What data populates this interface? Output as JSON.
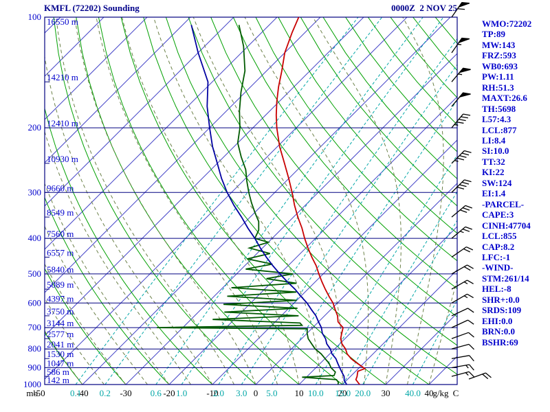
{
  "header": {
    "title": "KMFL (72202) Sounding",
    "datetime": "0000Z  2 NOV 25"
  },
  "indices": [
    "WMO:72202",
    "TP:89",
    "MW:143",
    "FRZ:593",
    "WB0:693",
    "PW:1.11",
    "RH:51.3",
    "MAXT:26.6",
    "TH:5698",
    "L57:4.3",
    "LCL:877",
    "LI:8.4",
    "SI:10.0",
    "TT:32",
    "KI:22",
    "SW:124",
    "EI:1.4",
    "-PARCEL-",
    "CAPE:3",
    "CINH:47704",
    "LCL:855",
    "CAP:8.2",
    "LFC:-1",
    "-WIND-",
    "STM:261/14",
    "HEL:-8",
    "SHR+:0.0",
    "SRDS:109",
    "EHI:0.0",
    "BRN:0.0",
    "BSHR:69"
  ],
  "chart_data": {
    "type": "line",
    "variant": "skew-t-log-p",
    "title": "KMFL (72202) Sounding",
    "x_axis": {
      "label": "C",
      "unit": "C",
      "ticks": [
        -50,
        -40,
        -30,
        -20,
        -10,
        0,
        10,
        20,
        30,
        40
      ]
    },
    "y_axis": {
      "label": "mb",
      "unit": "mb",
      "scale": "log",
      "ticks": [
        100,
        200,
        300,
        400,
        500,
        600,
        700,
        800,
        900,
        1000
      ]
    },
    "mixing_ratio_unit": "g/kg",
    "mixing_ratio_lines": [
      "0.1",
      "0.2",
      "0.6",
      "1.0",
      "2.0",
      "3.0",
      "5.0",
      "10.0",
      "15.0",
      "20.0",
      "40.0"
    ],
    "dry_adiabats_c": {
      "from": -40,
      "to": 270,
      "step": 10
    },
    "moist_adiabats_c": {
      "from": -40,
      "to": 40,
      "step": 5
    },
    "heights": [
      {
        "p": 100,
        "m": 16550
      },
      {
        "p": 150,
        "m": 14210
      },
      {
        "p": 200,
        "m": 12410
      },
      {
        "p": 250,
        "m": 10930
      },
      {
        "p": 300,
        "m": 9660
      },
      {
        "p": 350,
        "m": 8549
      },
      {
        "p": 400,
        "m": 7560
      },
      {
        "p": 450,
        "m": 6557
      },
      {
        "p": 500,
        "m": 5840
      },
      {
        "p": 550,
        "m": 5089
      },
      {
        "p": 600,
        "m": 4397
      },
      {
        "p": 650,
        "m": 3750
      },
      {
        "p": 700,
        "m": 3144
      },
      {
        "p": 750,
        "m": 2577
      },
      {
        "p": 800,
        "m": 2041
      },
      {
        "p": 850,
        "m": 1530
      },
      {
        "p": 900,
        "m": 1047
      },
      {
        "p": 950,
        "m": 586
      },
      {
        "p": 1000,
        "m": 142
      }
    ],
    "series": [
      {
        "name": "temperature",
        "color": "#c80000",
        "points": [
          [
            1000,
            24
          ],
          [
            985,
            23
          ],
          [
            970,
            22
          ],
          [
            950,
            21.5
          ],
          [
            935,
            21
          ],
          [
            920,
            20.5
          ],
          [
            905,
            21.5
          ],
          [
            890,
            20
          ],
          [
            875,
            18.5
          ],
          [
            860,
            17
          ],
          [
            850,
            16
          ],
          [
            825,
            14
          ],
          [
            800,
            12.5
          ],
          [
            775,
            10.5
          ],
          [
            750,
            9
          ],
          [
            725,
            8
          ],
          [
            700,
            7
          ],
          [
            690,
            6
          ],
          [
            675,
            4.5
          ],
          [
            650,
            3
          ],
          [
            625,
            1
          ],
          [
            600,
            -1
          ],
          [
            575,
            -3.5
          ],
          [
            550,
            -6
          ],
          [
            525,
            -8.5
          ],
          [
            500,
            -11
          ],
          [
            475,
            -13.5
          ],
          [
            450,
            -16.5
          ],
          [
            425,
            -19.5
          ],
          [
            400,
            -22.5
          ],
          [
            375,
            -25.5
          ],
          [
            350,
            -29
          ],
          [
            325,
            -32.5
          ],
          [
            300,
            -36
          ],
          [
            275,
            -40
          ],
          [
            250,
            -44.5
          ],
          [
            225,
            -49.5
          ],
          [
            200,
            -54.5
          ],
          [
            185,
            -57.5
          ],
          [
            170,
            -60.5
          ],
          [
            155,
            -63.5
          ],
          [
            140,
            -66.5
          ],
          [
            125,
            -70
          ],
          [
            110,
            -73
          ],
          [
            100,
            -75
          ]
        ]
      },
      {
        "name": "dewpoint",
        "color": "#005a00",
        "points": [
          [
            1000,
            19
          ],
          [
            985,
            18.5
          ],
          [
            970,
            17.5
          ],
          [
            955,
            9
          ],
          [
            945,
            16
          ],
          [
            925,
            15.5
          ],
          [
            900,
            13.5
          ],
          [
            875,
            12
          ],
          [
            850,
            10
          ],
          [
            825,
            8
          ],
          [
            800,
            5.5
          ],
          [
            775,
            3.5
          ],
          [
            750,
            1.5
          ],
          [
            725,
            0
          ],
          [
            705,
            -1
          ],
          [
            700,
            -36
          ],
          [
            690,
            -3
          ],
          [
            680,
            -4
          ],
          [
            665,
            -25
          ],
          [
            650,
            -6
          ],
          [
            635,
            -24
          ],
          [
            620,
            -8
          ],
          [
            605,
            -26
          ],
          [
            590,
            -10
          ],
          [
            575,
            -27
          ],
          [
            560,
            -12
          ],
          [
            545,
            -28
          ],
          [
            530,
            -14
          ],
          [
            515,
            -22
          ],
          [
            500,
            -17
          ],
          [
            485,
            -29
          ],
          [
            470,
            -24
          ],
          [
            455,
            -31
          ],
          [
            440,
            -27
          ],
          [
            425,
            -33
          ],
          [
            410,
            -30
          ],
          [
            400,
            -34
          ],
          [
            380,
            -35
          ],
          [
            360,
            -37
          ],
          [
            340,
            -40
          ],
          [
            320,
            -43
          ],
          [
            300,
            -46
          ],
          [
            280,
            -49
          ],
          [
            260,
            -52
          ],
          [
            240,
            -56
          ],
          [
            220,
            -60
          ],
          [
            200,
            -63
          ],
          [
            180,
            -67
          ],
          [
            160,
            -71
          ],
          [
            140,
            -75
          ],
          [
            120,
            -81
          ],
          [
            105,
            -87
          ]
        ]
      },
      {
        "name": "parcel",
        "color": "#0000a0",
        "points": [
          [
            1000,
            21
          ],
          [
            975,
            19.5
          ],
          [
            950,
            18.5
          ],
          [
            925,
            17
          ],
          [
            900,
            15.5
          ],
          [
            875,
            14
          ],
          [
            850,
            12.5
          ],
          [
            825,
            10.5
          ],
          [
            800,
            9
          ],
          [
            775,
            7
          ],
          [
            750,
            5.5
          ],
          [
            725,
            3.5
          ],
          [
            700,
            2
          ],
          [
            675,
            0
          ],
          [
            650,
            -2
          ],
          [
            625,
            -4.5
          ],
          [
            600,
            -7
          ],
          [
            575,
            -10
          ],
          [
            550,
            -13
          ],
          [
            525,
            -16.5
          ],
          [
            500,
            -20
          ],
          [
            475,
            -23.5
          ],
          [
            450,
            -27
          ],
          [
            425,
            -30.5
          ],
          [
            400,
            -34
          ],
          [
            375,
            -38
          ],
          [
            350,
            -42
          ],
          [
            325,
            -46.5
          ],
          [
            300,
            -51
          ],
          [
            275,
            -55.5
          ],
          [
            250,
            -60
          ],
          [
            225,
            -65
          ],
          [
            200,
            -70
          ],
          [
            175,
            -75.5
          ],
          [
            150,
            -81
          ],
          [
            125,
            -90
          ],
          [
            105,
            -98
          ]
        ]
      }
    ],
    "winds": [
      {
        "p": 100,
        "spd": 60,
        "dir": 35
      },
      {
        "p": 125,
        "spd": 55,
        "dir": 35
      },
      {
        "p": 150,
        "spd": 55,
        "dir": 40
      },
      {
        "p": 175,
        "spd": 50,
        "dir": 40
      },
      {
        "p": 200,
        "spd": 45,
        "dir": 40
      },
      {
        "p": 250,
        "spd": 45,
        "dir": 45
      },
      {
        "p": 300,
        "spd": 40,
        "dir": 45
      },
      {
        "p": 350,
        "spd": 30,
        "dir": 50
      },
      {
        "p": 400,
        "spd": 25,
        "dir": 50
      },
      {
        "p": 450,
        "spd": 20,
        "dir": 55
      },
      {
        "p": 500,
        "spd": 20,
        "dir": 60
      },
      {
        "p": 550,
        "spd": 15,
        "dir": 60
      },
      {
        "p": 600,
        "spd": 15,
        "dir": 60
      },
      {
        "p": 650,
        "spd": 10,
        "dir": 65
      },
      {
        "p": 700,
        "spd": 10,
        "dir": 65
      },
      {
        "p": 750,
        "spd": 10,
        "dir": 70
      },
      {
        "p": 800,
        "spd": 10,
        "dir": 75
      },
      {
        "p": 850,
        "spd": 10,
        "dir": 80
      },
      {
        "p": 900,
        "spd": 15,
        "dir": 80
      },
      {
        "p": 950,
        "spd": 15,
        "dir": 75
      },
      {
        "p": 1000,
        "spd": 20,
        "dir": 70,
        "dx": 25,
        "dy": -8
      }
    ]
  },
  "colors": {
    "background": "#ffffff",
    "frame": "#000080",
    "isobar": "#000080",
    "isotherm": "#4646c8",
    "dry_adiabat": "#00a000",
    "moist_adiabat": "#6b8048",
    "mixing_ratio": "#00a6a6",
    "temperature": "#c80000",
    "dewpoint": "#005a00",
    "parcel": "#0000a0",
    "labels_blue": "#0000cc",
    "labels_black": "#000000",
    "wind_barb": "#000000"
  }
}
